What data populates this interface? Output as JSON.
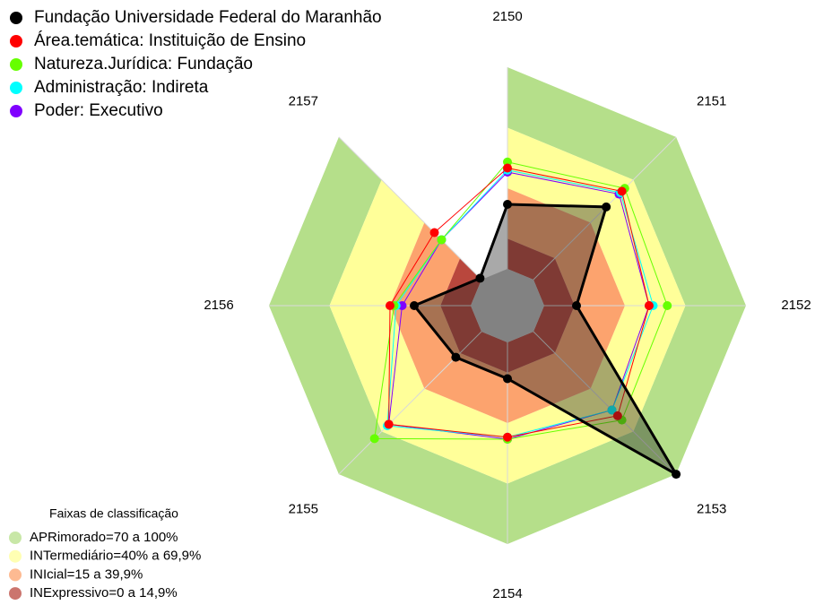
{
  "chart_data": {
    "type": "radar",
    "categories": [
      "2150",
      "2151",
      "2152",
      "2153",
      "2154",
      "2155",
      "2156",
      "2157"
    ],
    "rlim": [
      0,
      100
    ],
    "series": [
      {
        "name": "Fundação Universidade Federal do Maranhão",
        "color": "#000000",
        "values": [
          32,
          51,
          16,
          100,
          18,
          18,
          28,
          1
        ]
      },
      {
        "name": "Área.temática: Instituição de Ensino",
        "color": "#ff0000",
        "values": [
          50,
          62,
          52,
          59,
          47,
          65,
          40,
          33
        ]
      },
      {
        "name": "Natureza.Jurídica: Fundação",
        "color": "#66ff00",
        "values": [
          53,
          64,
          61,
          62,
          48,
          75,
          38,
          28
        ]
      },
      {
        "name": "Administração: Indireta",
        "color": "#00ffff",
        "values": [
          49,
          61,
          54,
          55,
          47,
          66,
          37,
          28
        ]
      },
      {
        "name": "Poder: Executivo",
        "color": "#8000ff",
        "values": [
          48,
          60,
          52,
          55,
          48,
          65,
          34,
          28
        ]
      }
    ],
    "bands_title": "Faixas de classificação",
    "bands": [
      {
        "label": "APRimorado=70 a 100%",
        "color": "#b5df8a",
        "from": 70,
        "to": 100
      },
      {
        "label": "INTermediário=40% a 69,9%",
        "color": "#ffff99",
        "from": 40,
        "to": 70
      },
      {
        "label": "INIcial=15 a 39,9%",
        "color": "#fca36e",
        "from": 15,
        "to": 40
      },
      {
        "label": "INExpressivo=0 a 14,9%",
        "color": "#b9473d",
        "from": 0,
        "to": 15
      }
    ]
  }
}
